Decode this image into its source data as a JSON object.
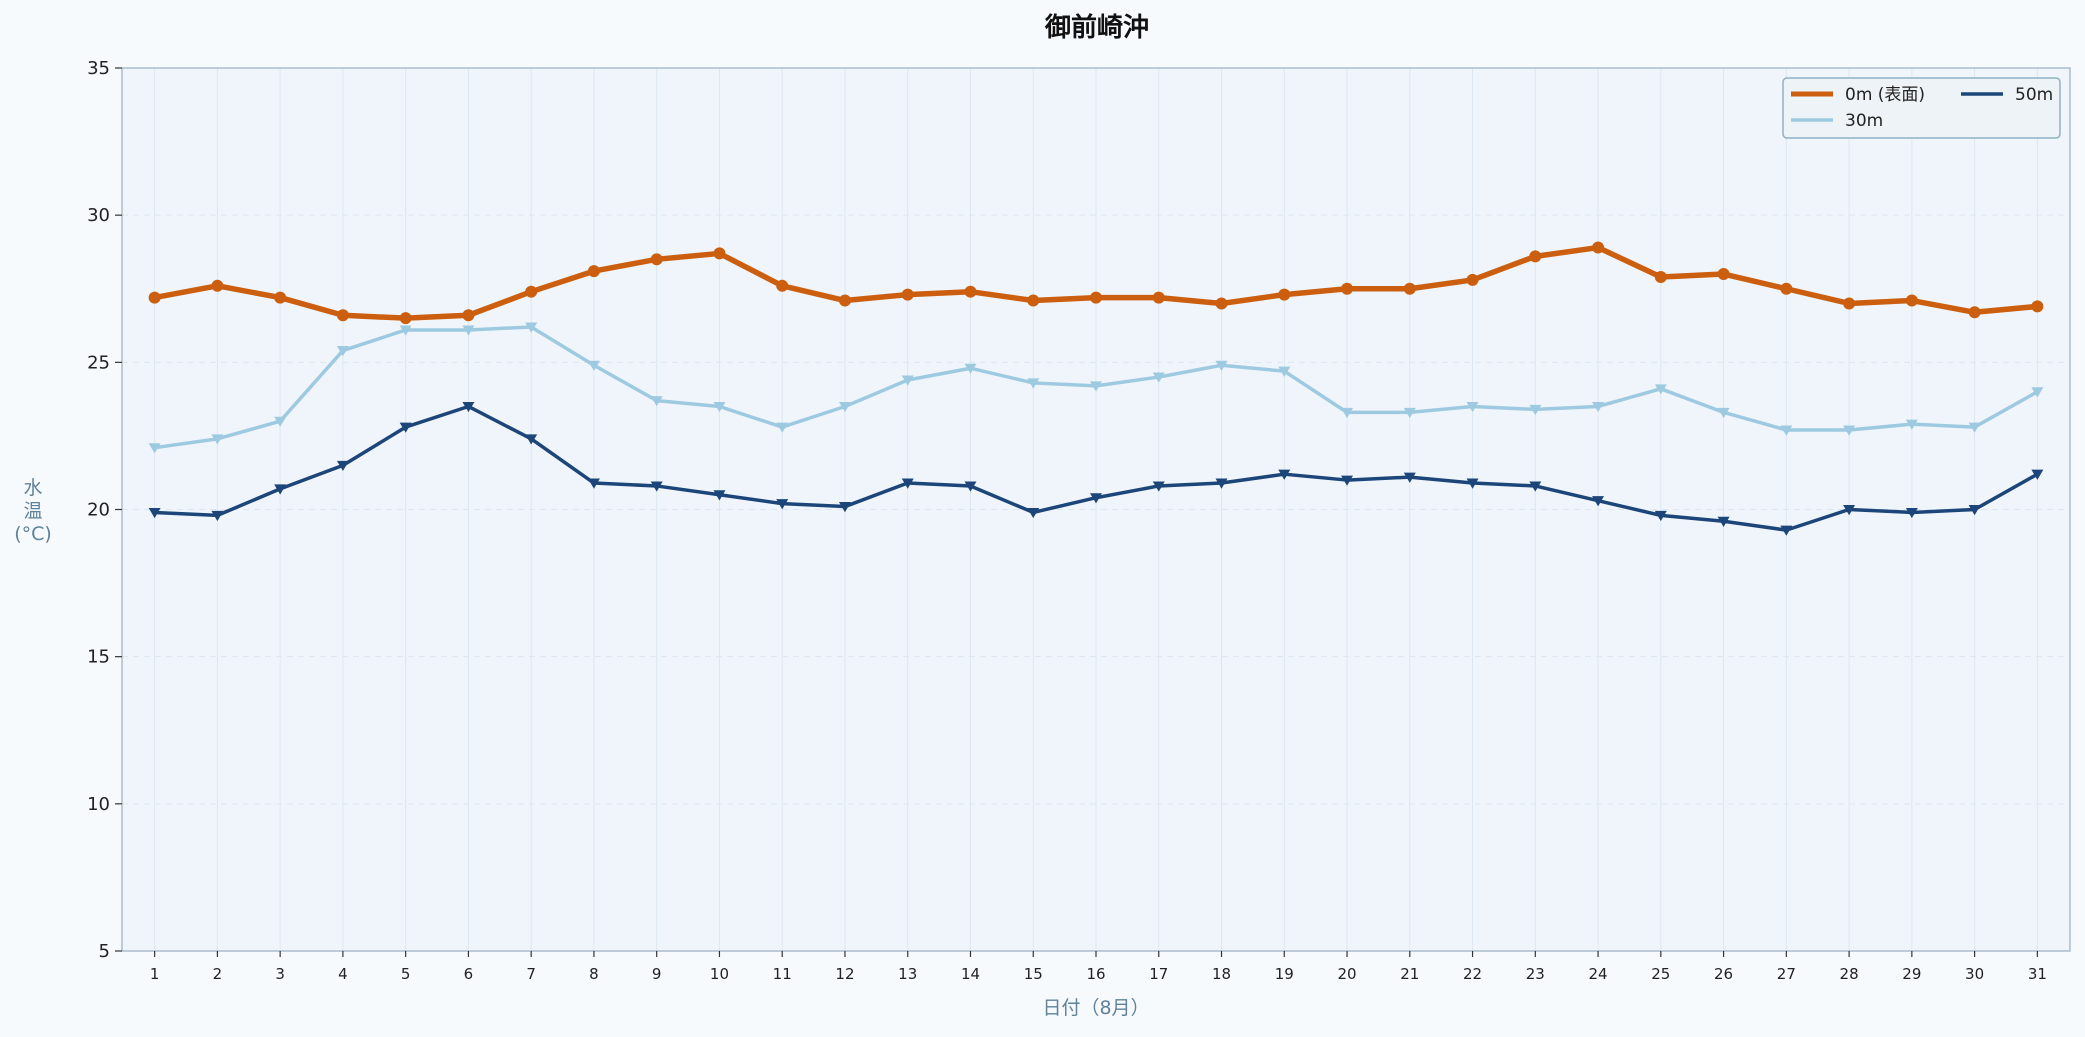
{
  "chart_data": {
    "type": "line",
    "title": "御前崎沖",
    "xlabel": "日付（8月）",
    "ylabel": "水\n温\n(°C)",
    "x": [
      1,
      2,
      3,
      4,
      5,
      6,
      7,
      8,
      9,
      10,
      11,
      12,
      13,
      14,
      15,
      16,
      17,
      18,
      19,
      20,
      21,
      22,
      23,
      24,
      25,
      26,
      27,
      28,
      29,
      30,
      31
    ],
    "xlim": [
      0.48,
      31.52
    ],
    "ylim": [
      5,
      35
    ],
    "yticks": [
      5,
      10,
      15,
      20,
      25,
      30,
      35
    ],
    "grid": true,
    "legend_position": "top-right",
    "series": [
      {
        "name": "0m (表面)",
        "color": "#cc5f0f",
        "marker": "circle",
        "values": [
          27.2,
          27.6,
          27.2,
          26.6,
          26.5,
          26.6,
          27.4,
          28.1,
          28.5,
          28.7,
          27.6,
          27.1,
          27.3,
          27.4,
          27.1,
          27.2,
          27.2,
          27.0,
          27.3,
          27.5,
          27.5,
          27.8,
          28.6,
          28.9,
          27.9,
          28.0,
          27.5,
          27.0,
          27.1,
          26.7,
          26.9
        ]
      },
      {
        "name": "30m",
        "color": "#9ecae1",
        "marker": "triangle-down",
        "values": [
          22.1,
          22.4,
          23.0,
          25.4,
          26.1,
          26.1,
          26.2,
          24.9,
          23.7,
          23.5,
          22.8,
          23.5,
          24.4,
          24.8,
          24.3,
          24.2,
          24.5,
          24.9,
          24.7,
          23.3,
          23.3,
          23.5,
          23.4,
          23.5,
          24.1,
          23.3,
          22.7,
          22.7,
          22.9,
          22.8,
          24.0
        ]
      },
      {
        "name": "50m",
        "color": "#1c4679",
        "marker": "triangle-down",
        "values": [
          19.9,
          19.8,
          20.7,
          21.5,
          22.8,
          23.5,
          22.4,
          20.9,
          20.8,
          20.5,
          20.2,
          20.1,
          20.9,
          20.8,
          19.9,
          20.4,
          20.8,
          20.9,
          21.2,
          21.0,
          21.1,
          20.9,
          20.8,
          20.3,
          19.8,
          19.6,
          19.3,
          20.0,
          19.9,
          20.0,
          21.2
        ]
      }
    ],
    "colors": {
      "background": "#f7fafd",
      "plot_background": "#f0f5fb",
      "axis": "#a9bccb",
      "grid": "#dde7f1",
      "axis_label": "#5f8299",
      "legend_border": "#8fb1c6"
    }
  }
}
